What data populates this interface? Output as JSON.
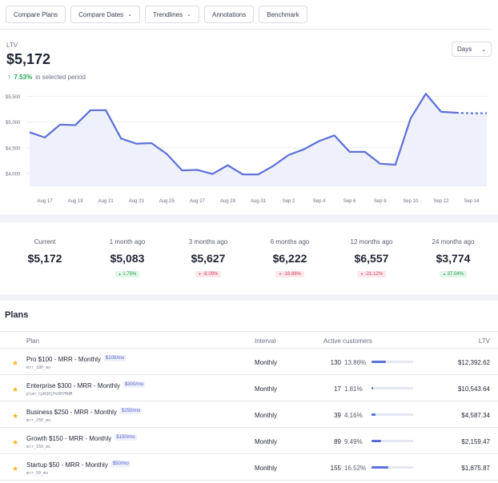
{
  "toolbar": [
    {
      "label": "Compare Plans",
      "dropdown": false
    },
    {
      "label": "Compare Dates",
      "dropdown": true
    },
    {
      "label": "Trendlines",
      "dropdown": true
    },
    {
      "label": "Annotations",
      "dropdown": false
    },
    {
      "label": "Benchmark",
      "dropdown": false
    }
  ],
  "metric": {
    "label": "LTV",
    "value": "$5,172",
    "change_pct": "7.53%",
    "change_text": "in selected period",
    "period_select": "Days"
  },
  "chart_data": {
    "type": "area",
    "x": [
      "Aug 16",
      "Aug 17",
      "Aug 18",
      "Aug 19",
      "Aug 20",
      "Aug 21",
      "Aug 22",
      "Aug 23",
      "Aug 24",
      "Aug 25",
      "Aug 26",
      "Aug 27",
      "Aug 28",
      "Aug 29",
      "Aug 30",
      "Aug 31",
      "Sep 1",
      "Sep 2",
      "Sep 3",
      "Sep 4",
      "Sep 5",
      "Sep 6",
      "Sep 7",
      "Sep 8",
      "Sep 9",
      "Sep 10",
      "Sep 11",
      "Sep 12",
      "Sep 13",
      "Sep 14",
      "Sep 15"
    ],
    "values": [
      4800,
      4700,
      4950,
      4940,
      5230,
      5230,
      4680,
      4580,
      4590,
      4380,
      4060,
      4070,
      3990,
      4160,
      3980,
      3980,
      4150,
      4360,
      4470,
      4630,
      4740,
      4420,
      4420,
      4190,
      4170,
      5070,
      5550,
      5200,
      5180,
      5170,
      5172
    ],
    "projected_from_index": 28,
    "x_tick_labels": [
      "Aug 17",
      "Aug 19",
      "Aug 21",
      "Aug 23",
      "Aug 25",
      "Aug 27",
      "Aug 29",
      "Aug 31",
      "Sep 2",
      "Sep 4",
      "Sep 6",
      "Sep 8",
      "Sep 10",
      "Sep 12",
      "Sep 14"
    ],
    "y_ticks": [
      4000,
      4500,
      5000,
      5500
    ],
    "y_tick_labels": [
      "$4,000",
      "$4,500",
      "$5,000",
      "$5,500"
    ],
    "ylim": [
      3750,
      5600
    ],
    "grid": true,
    "color": "#5b6fd8",
    "fill": "#eef0fb"
  },
  "stats": [
    {
      "label": "Current",
      "value": "$5,172",
      "badge": "",
      "direction": "none"
    },
    {
      "label": "1 month ago",
      "value": "$5,083",
      "badge": "1.75%",
      "direction": "up"
    },
    {
      "label": "3 months ago",
      "value": "$5,627",
      "badge": "-8.09%",
      "direction": "down"
    },
    {
      "label": "6 months ago",
      "value": "$6,222",
      "badge": "-16.88%",
      "direction": "down"
    },
    {
      "label": "12 months ago",
      "value": "$6,557",
      "badge": "-21.12%",
      "direction": "down"
    },
    {
      "label": "24 months ago",
      "value": "$3,774",
      "badge": "37.04%",
      "direction": "up"
    }
  ],
  "plans": {
    "title": "Plans",
    "columns": [
      "Plan",
      "Interval",
      "Active customers",
      "LTV"
    ],
    "rows": [
      {
        "name": "Pro $100 - MRR - Monthly",
        "tag": "$100/mo",
        "id": "mrr_100_mo",
        "interval": "Monthly",
        "count": "130",
        "pct": "13.86%",
        "share": 0.1386,
        "ltv": "$12,392.62"
      },
      {
        "name": "Enterprise $300 - MRR - Monthly",
        "tag": "$300/mo",
        "id": "plan_CpKQXjPe5H7HQM",
        "interval": "Monthly",
        "count": "17",
        "pct": "1.81%",
        "share": 0.0181,
        "ltv": "$10,543.64"
      },
      {
        "name": "Business $250 - MRR - Monthly",
        "tag": "$250/mo",
        "id": "mrr_250_mo",
        "interval": "Monthly",
        "count": "39",
        "pct": "4.16%",
        "share": 0.0416,
        "ltv": "$4,587.34"
      },
      {
        "name": "Growth $150 - MRR - Monthly",
        "tag": "$150/mo",
        "id": "mrr_150_mo",
        "interval": "Monthly",
        "count": "89",
        "pct": "9.49%",
        "share": 0.0949,
        "ltv": "$2,159.47"
      },
      {
        "name": "Startup $50 - MRR - Monthly",
        "tag": "$50/mo",
        "id": "mrr_50_mo",
        "interval": "Monthly",
        "count": "155",
        "pct": "16.52%",
        "share": 0.1652,
        "ltv": "$1,875.87"
      }
    ]
  }
}
